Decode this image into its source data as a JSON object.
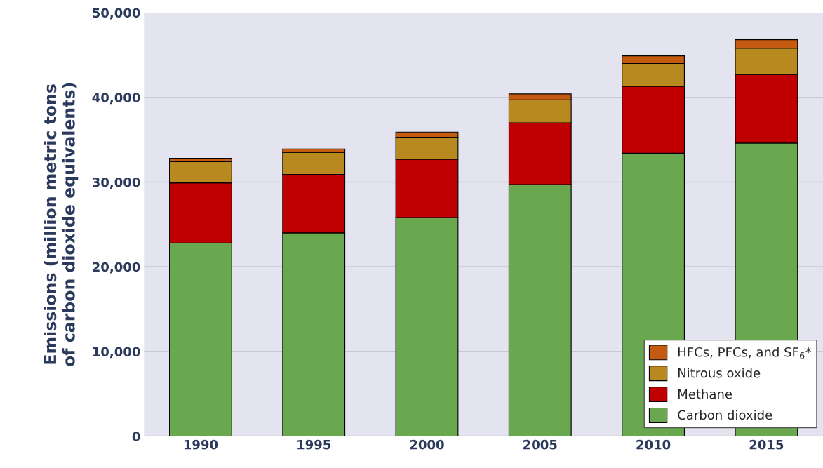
{
  "chart_data": {
    "type": "bar",
    "stacked": true,
    "ylabel": "Emissions (million metric tons\nof carbon dioxide equivalents)",
    "categories": [
      "1990",
      "1995",
      "2000",
      "2005",
      "2010",
      "2015"
    ],
    "series": [
      {
        "name": "Carbon dioxide",
        "color": "#6aa84f",
        "values": [
          22800,
          24000,
          25800,
          29700,
          33400,
          34600
        ]
      },
      {
        "name": "Methane",
        "color": "#c00000",
        "values": [
          7100,
          6900,
          6900,
          7300,
          7900,
          8100
        ]
      },
      {
        "name": "Nitrous oxide",
        "color": "#b8891e",
        "values": [
          2500,
          2600,
          2600,
          2700,
          2700,
          3100
        ]
      },
      {
        "name": "HFCs, PFCs, and SF$_{6}$*",
        "color": "#c55a11",
        "values": [
          400,
          400,
          600,
          700,
          900,
          1000
        ]
      }
    ],
    "ylim": [
      0,
      50000
    ],
    "yticks": [
      {
        "value": 0,
        "label": "0"
      },
      {
        "value": 10000,
        "label": "10,000"
      },
      {
        "value": 20000,
        "label": "20,000"
      },
      {
        "value": 30000,
        "label": "30,000"
      },
      {
        "value": 40000,
        "label": "40,000"
      },
      {
        "value": 50000,
        "label": "50,000"
      }
    ],
    "grid": "y",
    "legend": "bottom right"
  }
}
